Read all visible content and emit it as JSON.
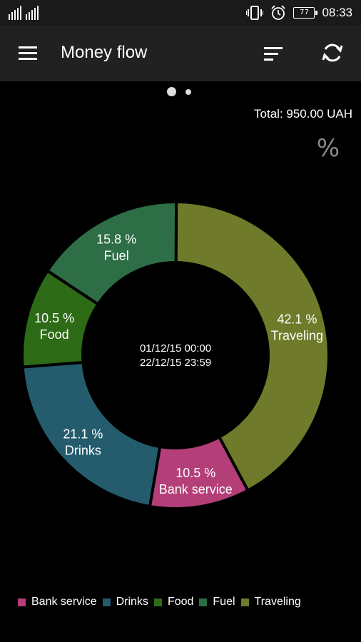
{
  "status_bar": {
    "battery": "77",
    "time": "08:33",
    "icons": [
      "signal-icon",
      "vibrate-icon",
      "alarm-icon",
      "battery-icon"
    ]
  },
  "toolbar": {
    "title": "Money flow",
    "icons": [
      "menu-icon",
      "sort-icon",
      "refresh-icon"
    ]
  },
  "pager": {
    "pages": 2,
    "current": 1
  },
  "summary": {
    "total": "Total: 950.00 UAH",
    "percent_toggle": "%"
  },
  "chart_center": {
    "start": "01/12/15 00:00",
    "end": "22/12/15 23:59"
  },
  "chart_data": {
    "type": "pie",
    "donut": true,
    "categories": [
      "Traveling",
      "Bank service",
      "Drinks",
      "Food",
      "Fuel"
    ],
    "values": [
      42.1,
      10.5,
      21.1,
      10.5,
      15.8
    ],
    "labels": [
      "42.1 %",
      "10.5 %",
      "21.1 %",
      "10.5 %",
      "15.8 %"
    ],
    "colors": [
      "#6f7a2a",
      "#b43f78",
      "#245c6e",
      "#2d6b16",
      "#2e6e46"
    ],
    "legend_position": "bottom",
    "legend": [
      {
        "label": "Bank service",
        "color": "#b43f78"
      },
      {
        "label": "Drinks",
        "color": "#245c6e"
      },
      {
        "label": "Food",
        "color": "#2d6b16"
      },
      {
        "label": "Fuel",
        "color": "#2e6e46"
      },
      {
        "label": "Traveling",
        "color": "#6f7a2a"
      }
    ]
  }
}
